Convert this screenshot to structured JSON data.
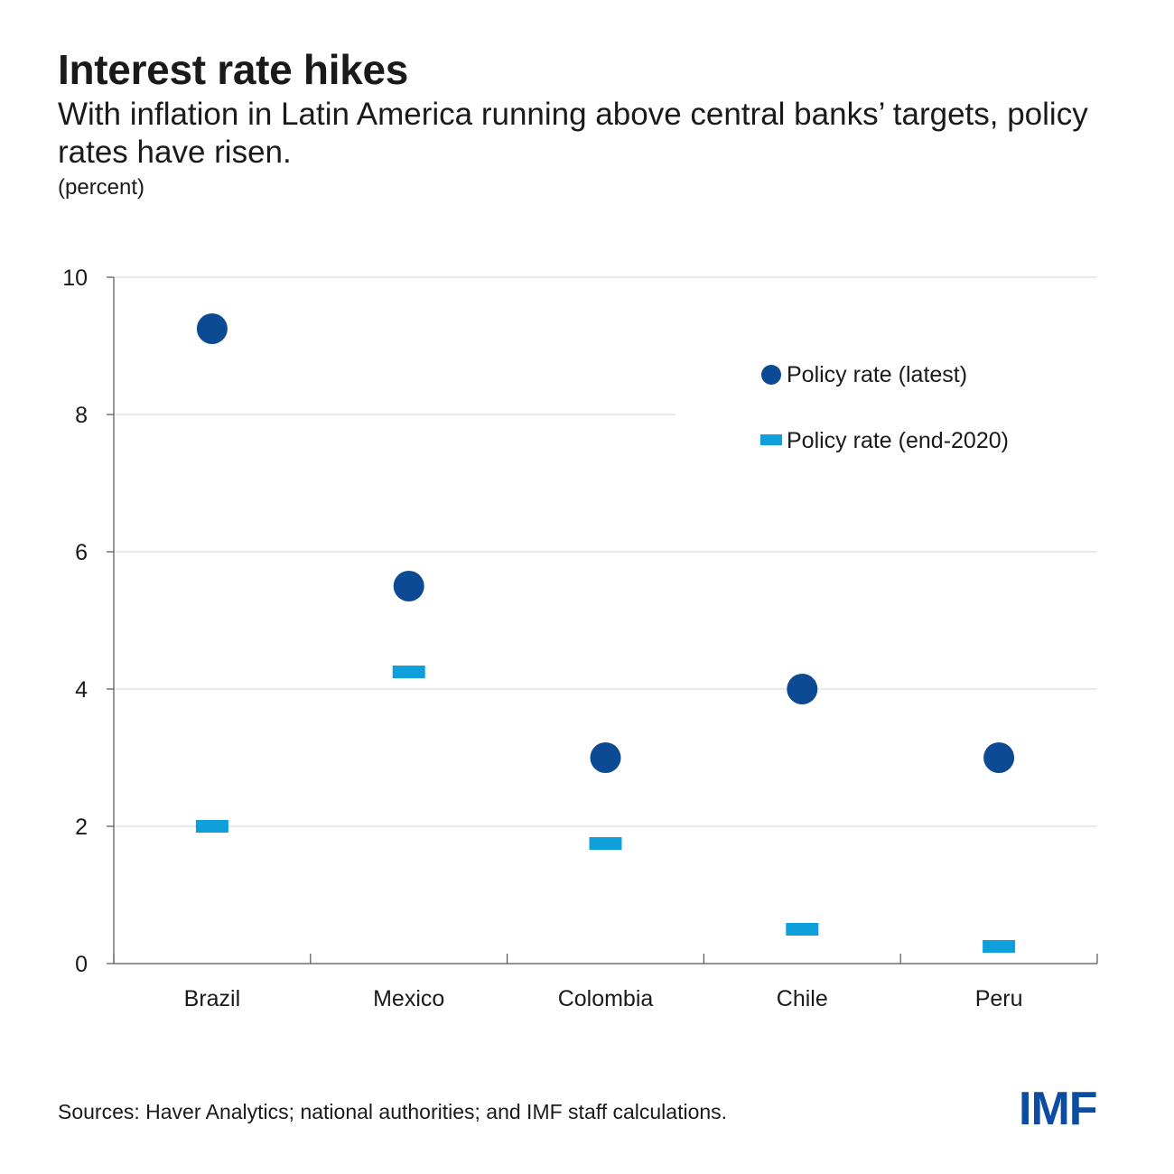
{
  "header": {
    "title": "Interest rate hikes",
    "subtitle": "With inflation in Latin America running above central banks’ targets, policy rates have risen.",
    "unit": "(percent)"
  },
  "footer": {
    "source": "Sources: Haver Analytics; national authorities; and IMF staff calculations.",
    "logo": "IMF"
  },
  "colors": {
    "latest": "#0d4a94",
    "end2020": "#0fa0dc",
    "grid": "#e3e3e3",
    "axis": "#555555",
    "logo": "#0d4da1"
  },
  "chart_data": {
    "type": "scatter",
    "categories": [
      "Brazil",
      "Mexico",
      "Colombia",
      "Chile",
      "Peru"
    ],
    "series": [
      {
        "name": "Policy rate (latest)",
        "marker": "circle",
        "values": [
          9.25,
          5.5,
          3.0,
          4.0,
          3.0
        ]
      },
      {
        "name": "Policy rate (end-2020)",
        "marker": "dash",
        "values": [
          2.0,
          4.25,
          1.75,
          0.5,
          0.25
        ]
      }
    ],
    "ylim": [
      0,
      10
    ],
    "yticks": [
      "0",
      "2",
      "4",
      "6",
      "8",
      "10"
    ],
    "ytick_values": [
      0,
      2,
      4,
      6,
      8,
      10
    ],
    "grid": true,
    "legend_position": "top-right"
  }
}
